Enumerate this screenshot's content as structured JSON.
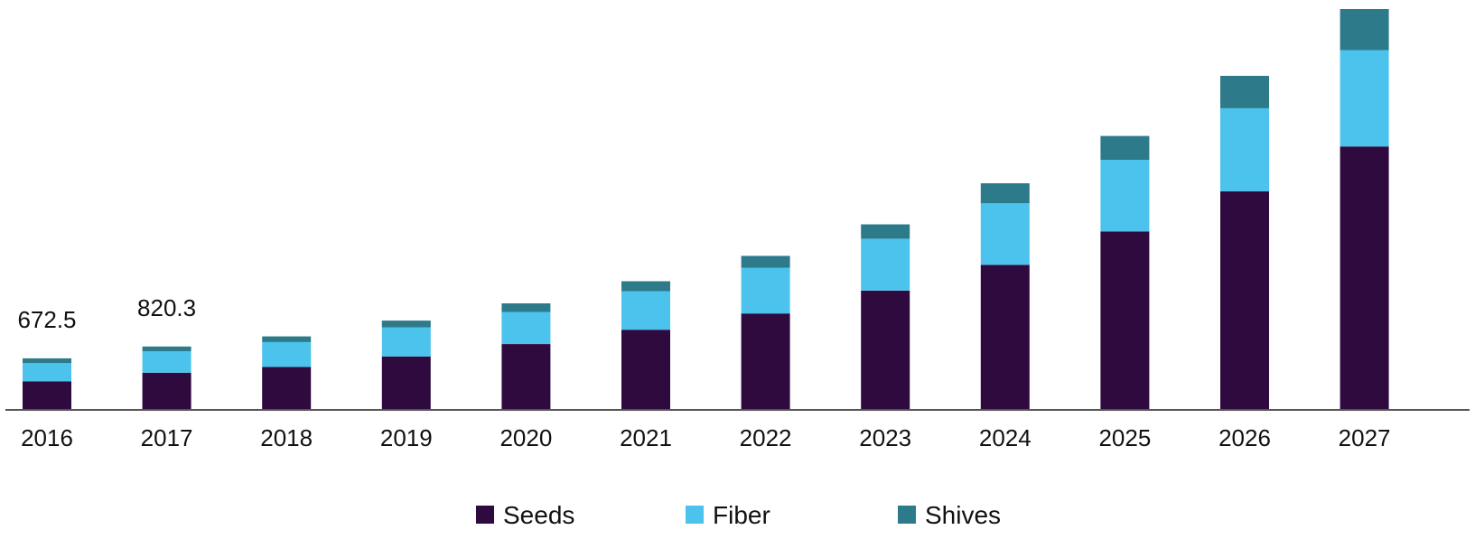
{
  "chart_data": {
    "type": "bar",
    "stacked": true,
    "categories": [
      "2016",
      "2017",
      "2018",
      "2019",
      "2020",
      "2021",
      "2022",
      "2023",
      "2024",
      "2025",
      "2026",
      "2027"
    ],
    "series": [
      {
        "name": "Seeds",
        "color": "#2e0a3f",
        "values": [
          150,
          195,
          225,
          280,
          345,
          420,
          505,
          625,
          760,
          935,
          1145,
          1380
        ]
      },
      {
        "name": "Fiber",
        "color": "#4cc3ec",
        "values": [
          95,
          112,
          130,
          152,
          168,
          202,
          240,
          272,
          322,
          375,
          435,
          505
        ]
      },
      {
        "name": "Shives",
        "color": "#2d7a8b",
        "values": [
          25,
          25,
          30,
          36,
          45,
          52,
          62,
          75,
          105,
          125,
          170,
          215
        ]
      }
    ],
    "data_labels": [
      {
        "category": "2016",
        "text": "672.5"
      },
      {
        "category": "2017",
        "text": "820.3"
      }
    ],
    "ylim": [
      0,
      2100
    ],
    "legend_position": "bottom-center",
    "grid": false
  }
}
